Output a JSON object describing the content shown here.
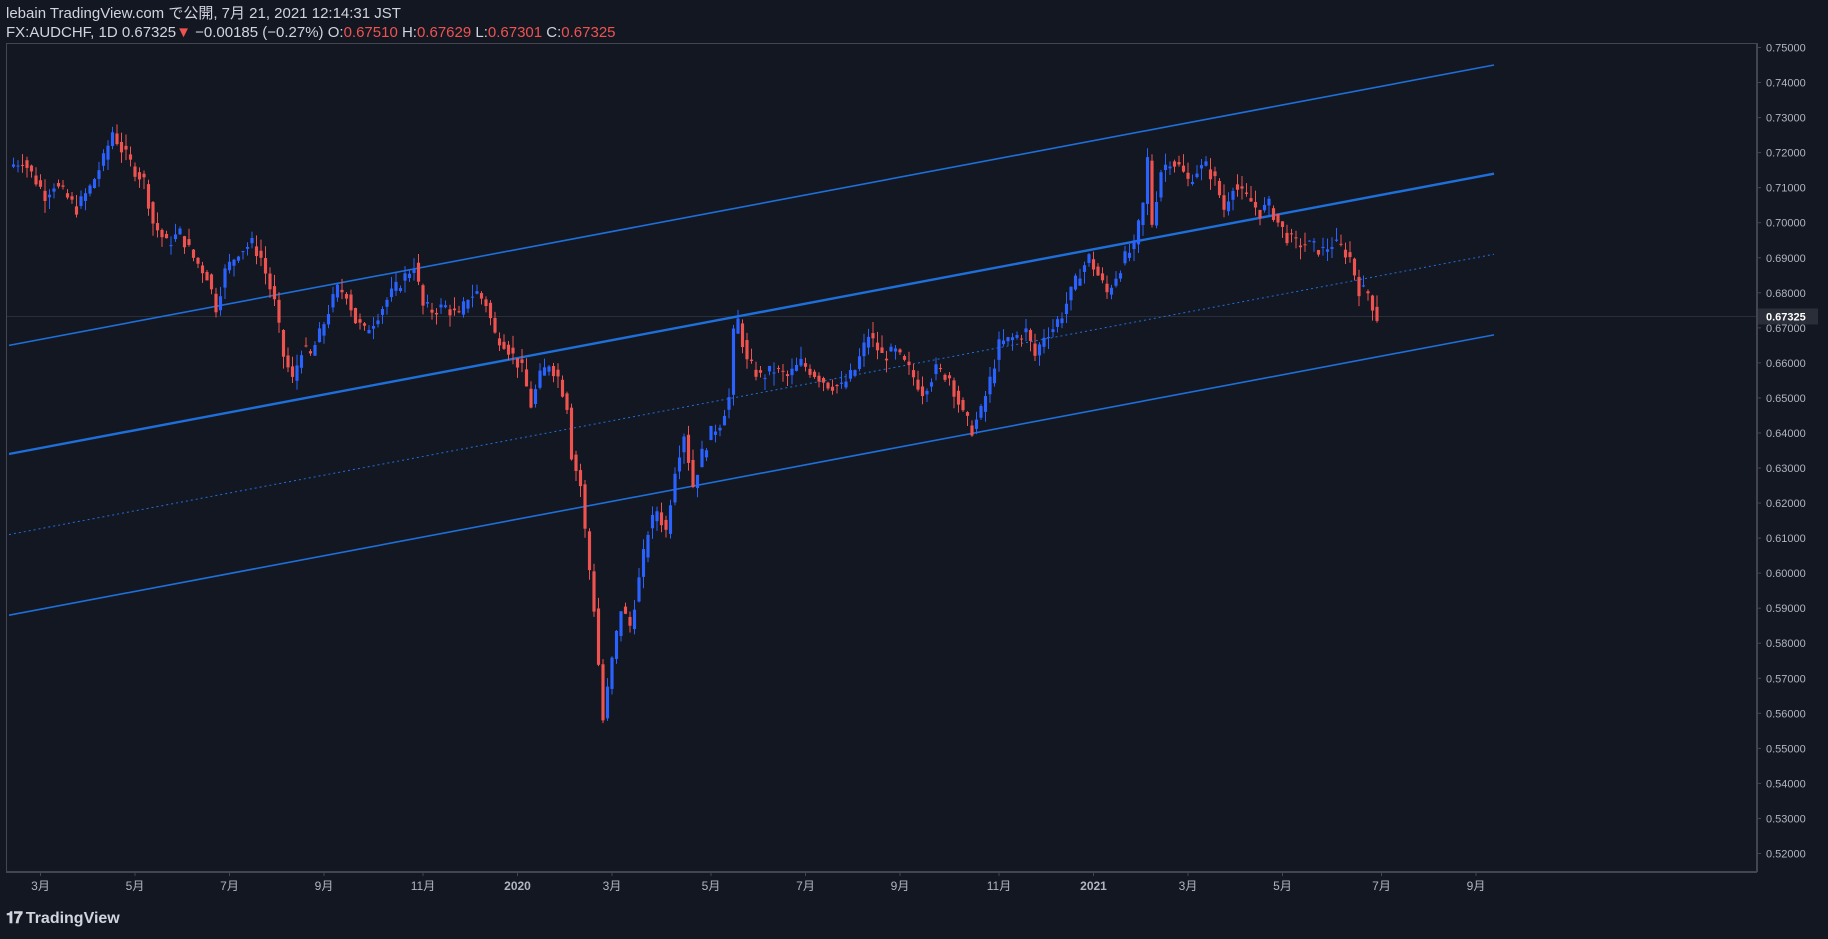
{
  "header": {
    "line1": "lebain TradingView.com で公開, 7月 21, 2021 12:14:31 JST",
    "symbol": "FX:AUDCHF, 1D 0.67325",
    "change_arrow": "▼",
    "change": "−0.00185 (−0.27%)",
    "o_label": "O:",
    "o_value": "0.67510",
    "h_label": "H:",
    "h_value": "0.67629",
    "l_label": "L:",
    "l_value": "0.67301",
    "c_label": "C:",
    "c_value": "0.67325"
  },
  "footer": {
    "logo_text": "TradingView",
    "logo_icon": "tradingview-logo-icon"
  },
  "colors": {
    "background": "#131722",
    "up": "#2962ff",
    "down": "#ef5350",
    "channel": "#1e6fd9",
    "text": "#d1d4dc"
  },
  "chart_data": {
    "type": "candlestick",
    "title": "FX:AUDCHF, 1D",
    "ylim": [
      0.515,
      0.751
    ],
    "y_ticks": [
      "0.75000",
      "0.74000",
      "0.73000",
      "0.72000",
      "0.71000",
      "0.70000",
      "0.69000",
      "0.68000",
      "0.67000",
      "0.66000",
      "0.65000",
      "0.64000",
      "0.63000",
      "0.62000",
      "0.61000",
      "0.60000",
      "0.59000",
      "0.58000",
      "0.57000",
      "0.56000",
      "0.55000",
      "0.54000",
      "0.53000",
      "0.52000"
    ],
    "last_price": "0.67325",
    "x_ticks": [
      "3月",
      "5月",
      "7月",
      "9月",
      "11月",
      "2020",
      "3月",
      "5月",
      "7月",
      "9月",
      "11月",
      "2021",
      "3月",
      "5月",
      "7月",
      "9月"
    ],
    "x_tick_bold": [
      false,
      false,
      false,
      false,
      false,
      true,
      false,
      false,
      false,
      false,
      false,
      true,
      false,
      false,
      false,
      false
    ],
    "price_path": [
      [
        0,
        0.716
      ],
      [
        3,
        0.718
      ],
      [
        6,
        0.712
      ],
      [
        8,
        0.708
      ],
      [
        10,
        0.711
      ],
      [
        13,
        0.707
      ],
      [
        15,
        0.704
      ],
      [
        18,
        0.71
      ],
      [
        21,
        0.718
      ],
      [
        23,
        0.726
      ],
      [
        25,
        0.721
      ],
      [
        28,
        0.715
      ],
      [
        30,
        0.712
      ],
      [
        32,
        0.7
      ],
      [
        35,
        0.694
      ],
      [
        38,
        0.697
      ],
      [
        41,
        0.69
      ],
      [
        44,
        0.685
      ],
      [
        46,
        0.676
      ],
      [
        48,
        0.686
      ],
      [
        51,
        0.692
      ],
      [
        54,
        0.694
      ],
      [
        56,
        0.69
      ],
      [
        59,
        0.677
      ],
      [
        61,
        0.662
      ],
      [
        63,
        0.655
      ],
      [
        65,
        0.664
      ],
      [
        67,
        0.662
      ],
      [
        69,
        0.668
      ],
      [
        71,
        0.675
      ],
      [
        73,
        0.681
      ],
      [
        75,
        0.68
      ],
      [
        77,
        0.672
      ],
      [
        79,
        0.669
      ],
      [
        81,
        0.672
      ],
      [
        84,
        0.678
      ],
      [
        87,
        0.683
      ],
      [
        90,
        0.688
      ],
      [
        92,
        0.676
      ],
      [
        94,
        0.675
      ],
      [
        97,
        0.676
      ],
      [
        100,
        0.673
      ],
      [
        102,
        0.679
      ],
      [
        104,
        0.68
      ],
      [
        106,
        0.677
      ],
      [
        108,
        0.668
      ],
      [
        110,
        0.666
      ],
      [
        112,
        0.662
      ],
      [
        114,
        0.658
      ],
      [
        116,
        0.648
      ],
      [
        118,
        0.656
      ],
      [
        120,
        0.66
      ],
      [
        122,
        0.656
      ],
      [
        124,
        0.648
      ],
      [
        125,
        0.634
      ],
      [
        127,
        0.625
      ],
      [
        128,
        0.612
      ],
      [
        130,
        0.59
      ],
      [
        132,
        0.558
      ],
      [
        134,
        0.575
      ],
      [
        136,
        0.59
      ],
      [
        138,
        0.585
      ],
      [
        140,
        0.598
      ],
      [
        142,
        0.612
      ],
      [
        144,
        0.618
      ],
      [
        146,
        0.612
      ],
      [
        148,
        0.63
      ],
      [
        150,
        0.64
      ],
      [
        152,
        0.625
      ],
      [
        154,
        0.634
      ],
      [
        156,
        0.64
      ],
      [
        158,
        0.643
      ],
      [
        160,
        0.65
      ],
      [
        161,
        0.668
      ],
      [
        162,
        0.672
      ],
      [
        164,
        0.66
      ],
      [
        167,
        0.656
      ],
      [
        170,
        0.658
      ],
      [
        173,
        0.656
      ],
      [
        176,
        0.66
      ],
      [
        179,
        0.657
      ],
      [
        182,
        0.654
      ],
      [
        185,
        0.653
      ],
      [
        188,
        0.658
      ],
      [
        191,
        0.668
      ],
      [
        194,
        0.662
      ],
      [
        197,
        0.663
      ],
      [
        200,
        0.658
      ],
      [
        203,
        0.652
      ],
      [
        206,
        0.658
      ],
      [
        209,
        0.656
      ],
      [
        212,
        0.645
      ],
      [
        214,
        0.641
      ],
      [
        216,
        0.646
      ],
      [
        218,
        0.655
      ],
      [
        220,
        0.665
      ],
      [
        223,
        0.667
      ],
      [
        226,
        0.669
      ],
      [
        228,
        0.662
      ],
      [
        230,
        0.668
      ],
      [
        232,
        0.67
      ],
      [
        234,
        0.674
      ],
      [
        236,
        0.68
      ],
      [
        238,
        0.686
      ],
      [
        240,
        0.69
      ],
      [
        242,
        0.685
      ],
      [
        244,
        0.68
      ],
      [
        246,
        0.685
      ],
      [
        248,
        0.69
      ],
      [
        250,
        0.693
      ],
      [
        252,
        0.705
      ],
      [
        253,
        0.718
      ],
      [
        254,
        0.7
      ],
      [
        256,
        0.715
      ],
      [
        258,
        0.718
      ],
      [
        260,
        0.716
      ],
      [
        262,
        0.712
      ],
      [
        264,
        0.715
      ],
      [
        266,
        0.716
      ],
      [
        268,
        0.712
      ],
      [
        270,
        0.704
      ],
      [
        272,
        0.711
      ],
      [
        274,
        0.708
      ],
      [
        276,
        0.706
      ],
      [
        278,
        0.703
      ],
      [
        280,
        0.705
      ],
      [
        282,
        0.7
      ],
      [
        284,
        0.696
      ],
      [
        286,
        0.694
      ],
      [
        288,
        0.694
      ],
      [
        290,
        0.693
      ],
      [
        292,
        0.692
      ],
      [
        294,
        0.694
      ],
      [
        296,
        0.693
      ],
      [
        298,
        0.69
      ],
      [
        300,
        0.681
      ],
      [
        302,
        0.68
      ],
      [
        304,
        0.673
      ]
    ],
    "price_path_x_unit": "trading-day index (0 = left edge, 304 = last candle)",
    "channel": {
      "upper": {
        "start": [
          0,
          0.665
        ],
        "end": [
          330,
          0.745
        ]
      },
      "middle": {
        "start": [
          0,
          0.634
        ],
        "end": [
          330,
          0.714
        ]
      },
      "median_dotted": {
        "start": [
          0,
          0.611
        ],
        "end": [
          330,
          0.691
        ]
      },
      "lower": {
        "start": [
          0,
          0.588
        ],
        "end": [
          330,
          0.668
        ]
      }
    }
  }
}
